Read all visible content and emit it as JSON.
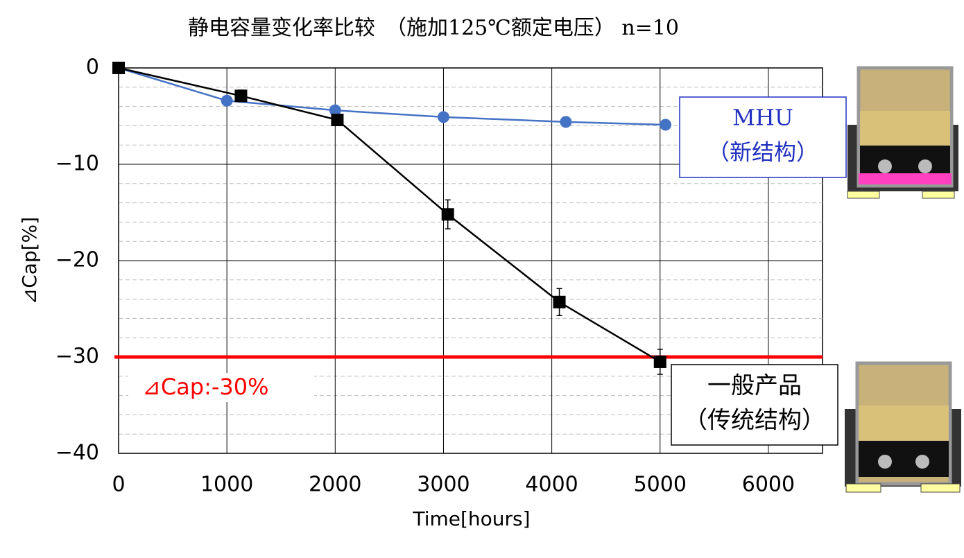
{
  "chart_data": {
    "type": "line",
    "title": "静电容量变化率比较　（施加125℃额定电压） n=10",
    "x_label": "Time[hours]",
    "y_label": "⊿Cap[%]",
    "xlim": [
      0,
      6500
    ],
    "xticks": [
      0,
      1000,
      2000,
      3000,
      4000,
      5000,
      6000
    ],
    "ylim": [
      -40,
      0
    ],
    "yticks": [
      {
        "value": -40,
        "label": "−40"
      },
      {
        "value": -30,
        "label": "−30"
      },
      {
        "value": -20,
        "label": "−20"
      },
      {
        "value": -10,
        "label": "−10"
      },
      0
    ],
    "yminor": [
      -38,
      -36,
      -34,
      -32,
      -28,
      -26,
      -24,
      -22,
      -18,
      -16,
      -14,
      -12,
      -8,
      -6,
      -4,
      -2
    ],
    "grid": true,
    "series": [
      {
        "name": "MHU",
        "color": "#4472c4",
        "marker": "circle",
        "x": [
          0,
          1000,
          2000,
          3000,
          4130,
          5050
        ],
        "values": [
          0,
          -3.4,
          -4.4,
          -5.1,
          -5.6,
          -5.9
        ]
      },
      {
        "name": "一般产品",
        "color": "#000000",
        "marker": "square",
        "x": [
          0,
          1130,
          2020,
          3040,
          4070,
          5000
        ],
        "values": [
          0,
          -2.9,
          -5.4,
          -15.2,
          -24.3,
          -30.5
        ],
        "error": [
          0,
          0.6,
          0.3,
          1.5,
          1.4,
          1.3
        ]
      }
    ],
    "threshold": {
      "value": -30,
      "label": "⊿Cap:-30%",
      "color": "#ff0000"
    },
    "annotations": [
      {
        "series": 0,
        "lines": [
          "MHU",
          "（新结构）"
        ]
      },
      {
        "series": 1,
        "lines": [
          "一般产品",
          "（传统结构）"
        ]
      }
    ]
  }
}
